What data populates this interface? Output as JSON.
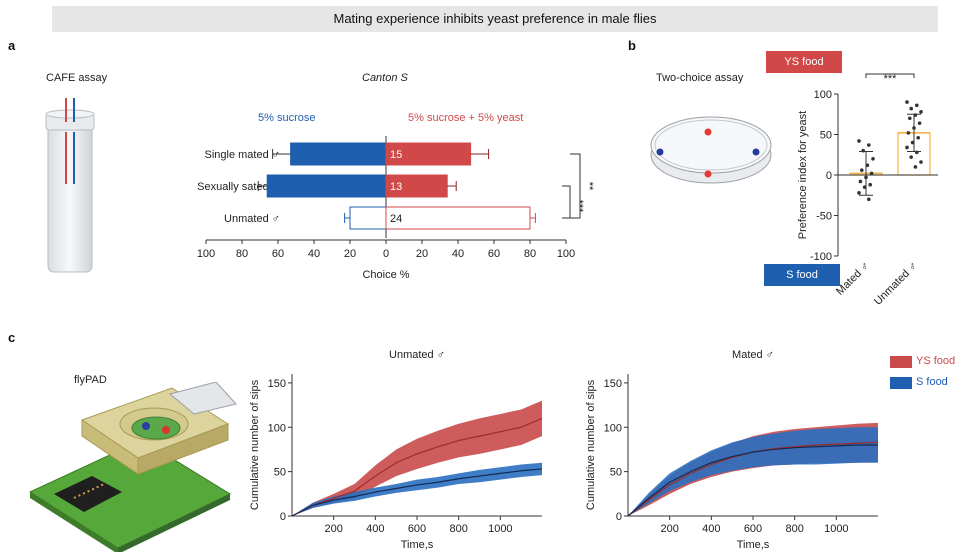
{
  "title": "Mating experience inhibits yeast preference in male flies",
  "panel_a": {
    "letter": "a",
    "cafe_label": "CAFE assay",
    "strain": "Canton S",
    "left_legend": "5% sucrose",
    "right_legend": "5% sucrose + 5% yeast",
    "significance": [
      "**",
      "***"
    ]
  },
  "panel_b": {
    "letter": "b",
    "two_choice_label": "Two-choice assay",
    "ys_food": "YS food",
    "s_food": "S food",
    "significance": "***"
  },
  "panel_c": {
    "letter": "c",
    "flypad_label": "flyPAD",
    "legend_ys": "YS food",
    "legend_s": "S food"
  },
  "colors": {
    "red": "#d04848",
    "blue": "#1f5fb0",
    "orange": "#f5b041",
    "dark": "#222222"
  },
  "chart_data": [
    {
      "type": "bar",
      "title": "Canton S",
      "xlabel": "Choice %",
      "categories": [
        "Single mated ♂",
        "Sexually sated ♂",
        "Unmated ♂"
      ],
      "n": [
        "15",
        "13",
        "24"
      ],
      "series": [
        {
          "name": "5% sucrose",
          "values": [
            53,
            66,
            20
          ],
          "errors": [
            10,
            5,
            3
          ]
        },
        {
          "name": "5% sucrose + 5% yeast",
          "values": [
            47,
            34,
            80
          ],
          "errors": [
            10,
            5,
            3
          ]
        }
      ],
      "xticks": [
        "100",
        "80",
        "60",
        "40",
        "20",
        "0",
        "20",
        "40",
        "60",
        "80",
        "100"
      ],
      "xlim": [
        -100,
        100
      ]
    },
    {
      "type": "scatter",
      "ylabel": "Preference index for yeast",
      "categories": [
        "Mated ♂",
        "Unmated ♂"
      ],
      "means": [
        2,
        52
      ],
      "sd": [
        27,
        23
      ],
      "points": [
        [
          42,
          37,
          30,
          20,
          12,
          6,
          2,
          -3,
          -8,
          -12,
          -15,
          -22,
          -30
        ],
        [
          90,
          86,
          82,
          78,
          74,
          70,
          64,
          58,
          52,
          46,
          40,
          34,
          28,
          22,
          16,
          10
        ]
      ],
      "ylim": [
        -100,
        100
      ],
      "yticks": [
        "100",
        "50",
        "0",
        "-50",
        "-100"
      ]
    },
    {
      "type": "area",
      "title": "Unmated ♂",
      "xlabel": "Time,s",
      "ylabel": "Cumulative number of sips",
      "xlim": [
        0,
        1200
      ],
      "ylim": [
        0,
        160
      ],
      "xticks": [
        "200",
        "400",
        "600",
        "800",
        "1000"
      ],
      "yticks": [
        "150",
        "100",
        "50",
        "0"
      ],
      "x": [
        0,
        100,
        200,
        300,
        400,
        500,
        600,
        700,
        800,
        900,
        1000,
        1100,
        1200
      ],
      "series": [
        {
          "name": "YS food",
          "mean": [
            0,
            12,
            20,
            28,
            45,
            60,
            70,
            78,
            85,
            90,
            95,
            100,
            110
          ],
          "sem": [
            0,
            3,
            5,
            8,
            12,
            15,
            17,
            18,
            19,
            20,
            20,
            20,
            20
          ]
        },
        {
          "name": "S food",
          "mean": [
            0,
            12,
            18,
            22,
            27,
            31,
            35,
            38,
            42,
            45,
            48,
            51,
            53
          ],
          "sem": [
            0,
            3,
            4,
            5,
            5,
            5,
            6,
            6,
            6,
            7,
            7,
            7,
            7
          ]
        }
      ]
    },
    {
      "type": "area",
      "title": "Mated ♂",
      "xlabel": "Time,s",
      "ylabel": "Cumulative number of sips",
      "xlim": [
        0,
        1200
      ],
      "ylim": [
        0,
        160
      ],
      "xticks": [
        "200",
        "400",
        "600",
        "800",
        "1000"
      ],
      "yticks": [
        "150",
        "100",
        "50",
        "0"
      ],
      "x": [
        0,
        100,
        200,
        300,
        400,
        500,
        600,
        700,
        800,
        900,
        1000,
        1100,
        1200
      ],
      "series": [
        {
          "name": "YS food",
          "mean": [
            0,
            18,
            35,
            48,
            58,
            66,
            72,
            76,
            78,
            80,
            81,
            82,
            83
          ],
          "sem": [
            0,
            6,
            10,
            12,
            14,
            16,
            18,
            19,
            20,
            20,
            21,
            22,
            22
          ]
        },
        {
          "name": "S food",
          "mean": [
            0,
            20,
            38,
            50,
            60,
            67,
            72,
            75,
            77,
            78,
            79,
            80,
            80
          ],
          "sem": [
            0,
            6,
            10,
            12,
            14,
            16,
            17,
            18,
            19,
            20,
            20,
            20,
            20
          ]
        }
      ]
    }
  ]
}
